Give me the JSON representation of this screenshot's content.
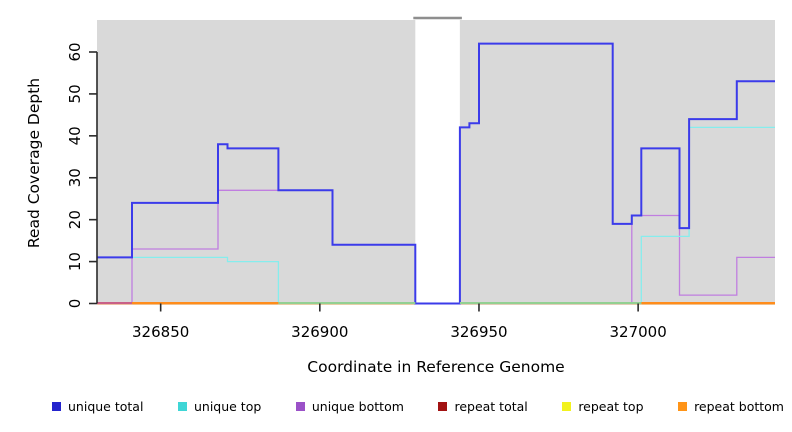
{
  "chart_data": {
    "type": "line",
    "subtype": "step-coverage",
    "title": "",
    "xlabel": "Coordinate in Reference Genome",
    "ylabel": "Read Coverage Depth",
    "x_ticks": [
      326850,
      326900,
      326950,
      327000
    ],
    "y_ticks": [
      0,
      10,
      20,
      30,
      40,
      50,
      60
    ],
    "xlim": [
      326830,
      327043
    ],
    "ylim": [
      0,
      67.6
    ],
    "grid": "off",
    "legend_position": "bottom",
    "plot_background": "#d9d9d9",
    "coverage_gap": {
      "from": 326930,
      "to": 326944,
      "top_line_color": "#8e8e8e"
    },
    "series": [
      {
        "name": "unique total",
        "color": "#3b3bea",
        "legend_color": "#2424cd",
        "width": 2,
        "points": [
          [
            326830,
            11
          ],
          [
            326841,
            24
          ],
          [
            326868,
            38
          ],
          [
            326871,
            37
          ],
          [
            326887,
            27
          ],
          [
            326904,
            14
          ],
          [
            326930,
            0
          ],
          [
            326944,
            42
          ],
          [
            326947,
            43
          ],
          [
            326950,
            62
          ],
          [
            326992,
            19
          ],
          [
            326998,
            21
          ],
          [
            327001,
            37
          ],
          [
            327013,
            18
          ],
          [
            327016,
            44
          ],
          [
            327031,
            53
          ]
        ]
      },
      {
        "name": "unique top",
        "color": "#85eded",
        "legend_color": "#3fd6d6",
        "width": 1.3,
        "points": [
          [
            326830,
            11
          ],
          [
            326871,
            10
          ],
          [
            326887,
            0
          ],
          [
            327001,
            16
          ],
          [
            327016,
            42
          ]
        ]
      },
      {
        "name": "unique bottom",
        "color": "#c07ee0",
        "legend_color": "#9b51c8",
        "width": 1.3,
        "points": [
          [
            326830,
            0
          ],
          [
            326841,
            13
          ],
          [
            326868,
            27
          ],
          [
            326904,
            14
          ],
          [
            326930,
            0
          ],
          [
            326998,
            21
          ],
          [
            327013,
            2
          ],
          [
            327031,
            11
          ]
        ]
      },
      {
        "name": "repeat total",
        "color": "#a21212",
        "legend_color": "#a21212",
        "width": 1.3,
        "points": [
          [
            326830,
            0
          ]
        ]
      },
      {
        "name": "repeat top",
        "color": "#f2f21e",
        "legend_color": "#f2f21e",
        "width": 1.3,
        "points": [
          [
            326830,
            0
          ]
        ]
      },
      {
        "name": "repeat bottom",
        "color": "#ff8c1a",
        "legend_color": "#ff9417",
        "width": 2,
        "points": [
          [
            326830,
            0
          ]
        ]
      }
    ],
    "baseline_segments": [
      {
        "from": 326830,
        "to": 326841,
        "color": "#c96087"
      },
      {
        "from": 326841,
        "to": 326887,
        "color": "#ff8c1a"
      },
      {
        "from": 326887,
        "to": 326930,
        "color": "#92d092"
      },
      {
        "from": 326944,
        "to": 327001,
        "color": "#92d092"
      },
      {
        "from": 327001,
        "to": 327043,
        "color": "#ff8c1a"
      }
    ]
  }
}
